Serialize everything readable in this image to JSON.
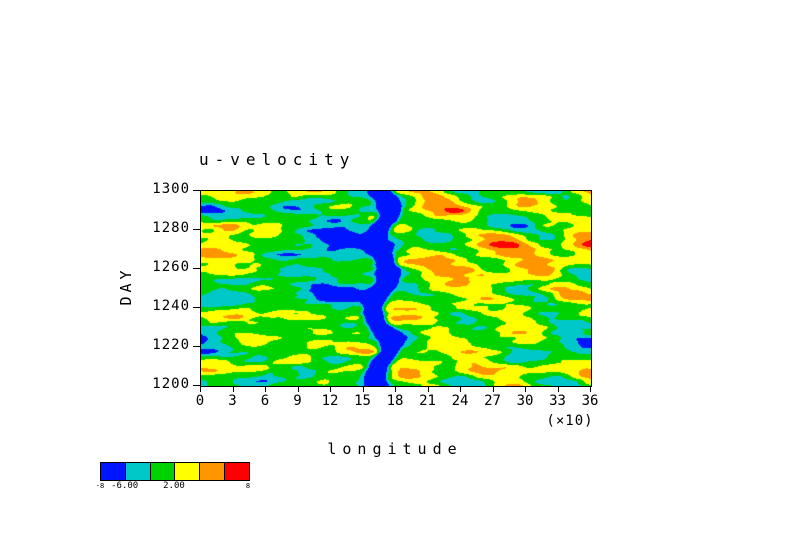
{
  "figure": {
    "background": "#ffffff",
    "frame_color": "#000000"
  },
  "chart_data": {
    "type": "heatmap",
    "title": "u-velocity",
    "xlabel": "longitude",
    "x_unit_note": "(×10)",
    "ylabel": "DAY",
    "xlim": [
      0,
      36
    ],
    "ylim": [
      1200,
      1300
    ],
    "x_ticks": [
      "0",
      "3",
      "6",
      "9",
      "12",
      "15",
      "18",
      "21",
      "24",
      "27",
      "30",
      "33",
      "36"
    ],
    "y_ticks": [
      "1300",
      "1280",
      "1260",
      "1240",
      "1220",
      "1200"
    ],
    "grid": false,
    "legend_position": "bottom-left-colorbar",
    "colorbar": {
      "colors": [
        "#0014ff",
        "#00c8c8",
        "#00d200",
        "#ffff00",
        "#ff9600",
        "#ff0000"
      ],
      "levels": [
        -6,
        -2,
        2,
        6,
        10
      ],
      "labels": [
        {
          "pos": 0,
          "text": "-8",
          "small": true
        },
        {
          "pos": 1,
          "text": "-6.00",
          "small": false
        },
        {
          "pos": 3,
          "text": "2.00",
          "small": false
        },
        {
          "pos": 6,
          "text": "8",
          "small": true
        }
      ]
    },
    "description": "Hovmoller diagram of zonal u-velocity versus longitude (x, 0-36 x10) and day (y, 1200-1300). A persistent strongly negative (blue) meandering band sits near longitude 16-17(x10) spanning all days; eastern longitudes (18-36) are dominated by tilted positive (red/orange) streaks; western longitudes show mixed green/cyan turbulence with scattered red and blue patches.",
    "features": {
      "persistent_negative_band_longitude_frac": 0.462,
      "negative_band_width_frac": 0.022,
      "warm_bias_east_of_frac": 0.5,
      "seed": 11
    }
  }
}
